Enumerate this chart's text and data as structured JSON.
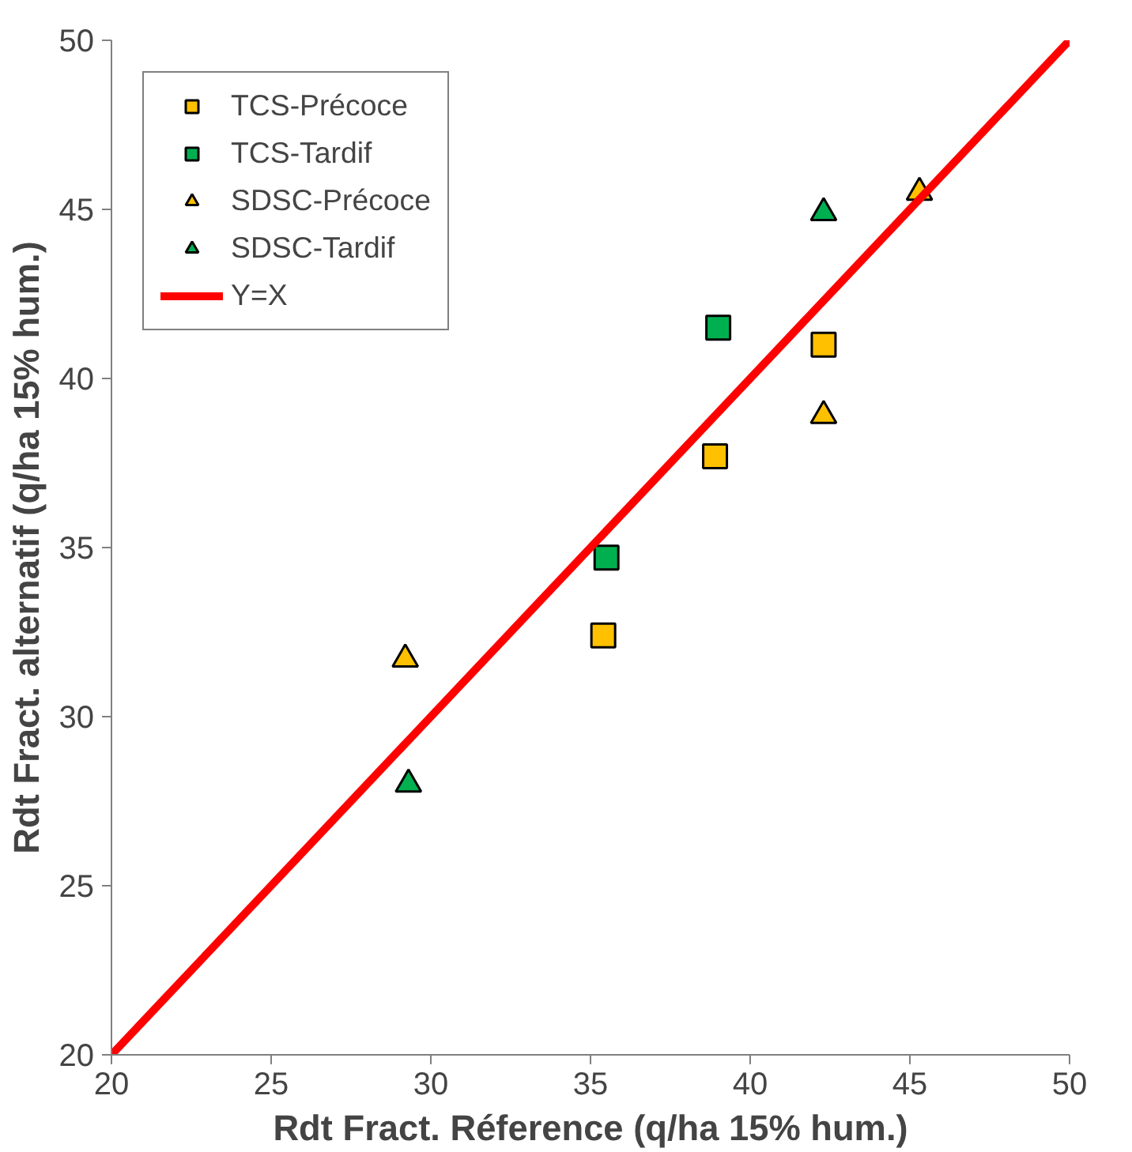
{
  "chart_data": {
    "type": "scatter",
    "xlabel": "Rdt Fract. Réference (q/ha 15% hum.)",
    "ylabel": "Rdt Fract. alternatif (q/ha 15% hum.)",
    "xlim": [
      20,
      50
    ],
    "ylim": [
      20,
      50
    ],
    "xticks": [
      20,
      25,
      30,
      35,
      40,
      45,
      50
    ],
    "yticks": [
      20,
      25,
      30,
      35,
      40,
      45,
      50
    ],
    "legend": "top left",
    "series": [
      {
        "name": "TCS-Précoce",
        "color": "#ffc000",
        "marker": "square",
        "x": [
          38.9,
          42.3,
          35.4
        ],
        "values": [
          37.7,
          41.0,
          32.4
        ]
      },
      {
        "name": "TCS-Tardif",
        "color": "#00b050",
        "marker": "square",
        "x": [
          39.0,
          35.5
        ],
        "values": [
          41.5,
          34.7
        ]
      },
      {
        "name": "SDSC-Précoce",
        "color": "#ffc000",
        "marker": "triangle",
        "x": [
          29.2,
          42.3,
          45.3
        ],
        "values": [
          31.7,
          38.9,
          45.5
        ]
      },
      {
        "name": "SDSC-Tardif",
        "color": "#00b050",
        "marker": "triangle",
        "x": [
          29.3,
          42.3
        ],
        "values": [
          28.0,
          44.9
        ]
      },
      {
        "name": "Y=X",
        "type": "line",
        "color": "#ff0000",
        "x": [
          20,
          50
        ],
        "values": [
          20,
          50
        ]
      }
    ]
  }
}
